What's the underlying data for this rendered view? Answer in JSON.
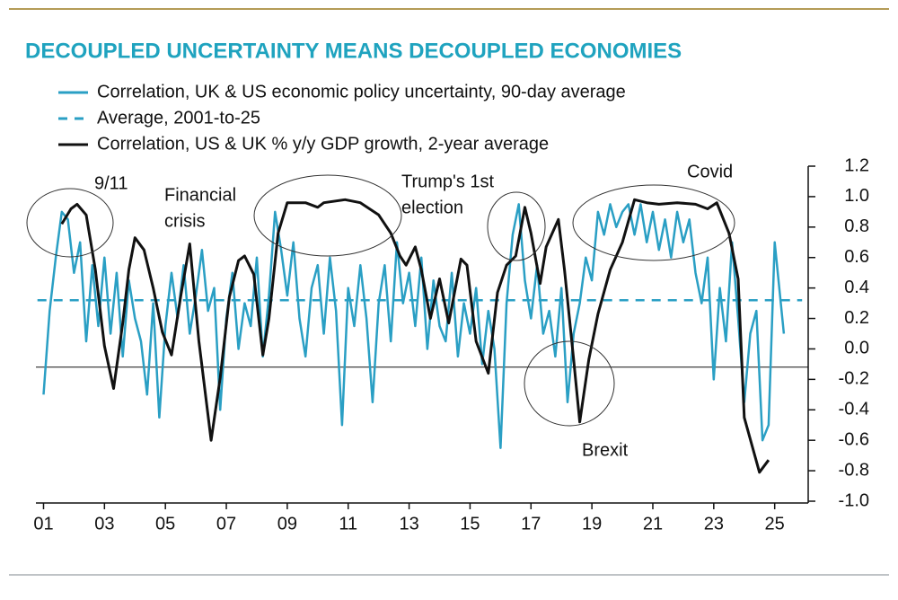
{
  "chart_data": {
    "type": "line",
    "title": "DECOUPLED UNCERTAINTY MEANS DECOUPLED ECONOMIES",
    "xlim": [
      2000.75,
      2026.1
    ],
    "xticks": [
      {
        "value": 2001,
        "label": "01"
      },
      {
        "value": 2003,
        "label": "03"
      },
      {
        "value": 2005,
        "label": "05"
      },
      {
        "value": 2007,
        "label": "07"
      },
      {
        "value": 2009,
        "label": "09"
      },
      {
        "value": 2011,
        "label": "11"
      },
      {
        "value": 2013,
        "label": "13"
      },
      {
        "value": 2015,
        "label": "15"
      },
      {
        "value": 2017,
        "label": "17"
      },
      {
        "value": 2019,
        "label": "19"
      },
      {
        "value": 2021,
        "label": "21"
      },
      {
        "value": 2023,
        "label": "23"
      },
      {
        "value": 2025,
        "label": "25"
      }
    ],
    "ylim": [
      -1.0,
      1.2
    ],
    "yticks": [
      {
        "value": 1.2,
        "label": "1.2"
      },
      {
        "value": 1.0,
        "label": "1.0"
      },
      {
        "value": 0.8,
        "label": "0.8"
      },
      {
        "value": 0.6,
        "label": "0.6"
      },
      {
        "value": 0.4,
        "label": "0.4"
      },
      {
        "value": 0.2,
        "label": "0.2"
      },
      {
        "value": 0.0,
        "label": "0.0"
      },
      {
        "value": -0.2,
        "label": "-0.2"
      },
      {
        "value": -0.4,
        "label": "-0.4"
      },
      {
        "value": -0.6,
        "label": "-0.6"
      },
      {
        "value": -0.8,
        "label": "-0.8"
      },
      {
        "value": -1.0,
        "label": "-1.0"
      }
    ],
    "reference_line": -0.12,
    "series": [
      {
        "name": "Correlation, UK & US economic policy uncertainty, 90-day average",
        "color": "#2a9fc4",
        "dash": false,
        "x": [
          2001.0,
          2001.2,
          2001.4,
          2001.6,
          2001.8,
          2002.0,
          2002.2,
          2002.4,
          2002.6,
          2002.8,
          2003.0,
          2003.2,
          2003.4,
          2003.6,
          2003.8,
          2004.0,
          2004.2,
          2004.4,
          2004.6,
          2004.8,
          2005.0,
          2005.2,
          2005.4,
          2005.6,
          2005.8,
          2006.0,
          2006.2,
          2006.4,
          2006.6,
          2006.8,
          2007.0,
          2007.2,
          2007.4,
          2007.6,
          2007.8,
          2008.0,
          2008.2,
          2008.4,
          2008.6,
          2008.8,
          2009.0,
          2009.2,
          2009.4,
          2009.6,
          2009.8,
          2010.0,
          2010.2,
          2010.4,
          2010.6,
          2010.8,
          2011.0,
          2011.2,
          2011.4,
          2011.6,
          2011.8,
          2012.0,
          2012.2,
          2012.4,
          2012.6,
          2012.8,
          2013.0,
          2013.2,
          2013.4,
          2013.6,
          2013.8,
          2014.0,
          2014.2,
          2014.4,
          2014.6,
          2014.8,
          2015.0,
          2015.2,
          2015.4,
          2015.6,
          2015.8,
          2016.0,
          2016.2,
          2016.4,
          2016.6,
          2016.8,
          2017.0,
          2017.2,
          2017.4,
          2017.6,
          2017.8,
          2018.0,
          2018.2,
          2018.4,
          2018.6,
          2018.8,
          2019.0,
          2019.2,
          2019.4,
          2019.6,
          2019.8,
          2020.0,
          2020.2,
          2020.4,
          2020.6,
          2020.8,
          2021.0,
          2021.2,
          2021.4,
          2021.6,
          2021.8,
          2022.0,
          2022.2,
          2022.4,
          2022.6,
          2022.8,
          2023.0,
          2023.2,
          2023.4,
          2023.6,
          2023.8,
          2024.0,
          2024.2,
          2024.4,
          2024.6,
          2024.8,
          2025.0,
          2025.2,
          2025.3
        ],
        "values": [
          -0.3,
          0.25,
          0.6,
          0.9,
          0.85,
          0.5,
          0.7,
          0.05,
          0.55,
          0.15,
          0.6,
          0.1,
          0.5,
          -0.05,
          0.45,
          0.2,
          0.05,
          -0.3,
          0.3,
          -0.45,
          0.15,
          0.5,
          0.2,
          0.55,
          0.1,
          0.35,
          0.65,
          0.25,
          0.4,
          -0.4,
          0.2,
          0.5,
          0.0,
          0.3,
          0.15,
          0.6,
          -0.05,
          0.35,
          0.9,
          0.65,
          0.35,
          0.7,
          0.2,
          -0.05,
          0.4,
          0.55,
          0.1,
          0.6,
          0.25,
          -0.5,
          0.4,
          0.15,
          0.55,
          0.2,
          -0.35,
          0.3,
          0.55,
          0.05,
          0.7,
          0.3,
          0.5,
          0.15,
          0.6,
          0.0,
          0.45,
          0.15,
          0.05,
          0.5,
          -0.05,
          0.3,
          0.1,
          0.4,
          -0.1,
          0.25,
          0.0,
          -0.65,
          0.3,
          0.75,
          0.95,
          0.45,
          0.2,
          0.55,
          0.1,
          0.25,
          -0.05,
          0.4,
          -0.35,
          0.1,
          0.3,
          0.6,
          0.45,
          0.9,
          0.75,
          0.95,
          0.8,
          0.9,
          0.95,
          0.75,
          0.95,
          0.7,
          0.9,
          0.65,
          0.85,
          0.6,
          0.9,
          0.7,
          0.85,
          0.5,
          0.3,
          0.6,
          -0.2,
          0.4,
          0.05,
          0.7,
          0.2,
          -0.35,
          0.1,
          0.25,
          -0.6,
          -0.5,
          0.7,
          0.3,
          0.1
        ]
      },
      {
        "name": "Average, 2001-to-25",
        "color": "#2a9fc4",
        "dash": true,
        "x": [
          2000.8,
          2025.9
        ],
        "values": [
          0.32,
          0.32
        ]
      },
      {
        "name": "Correlation, US & UK % y/y GDP growth, 2-year average",
        "color": "#111111",
        "dash": false,
        "x": [
          2001.6,
          2001.9,
          2002.1,
          2002.4,
          2002.7,
          2003.0,
          2003.3,
          2003.6,
          2003.8,
          2004.0,
          2004.3,
          2004.6,
          2004.9,
          2005.2,
          2005.5,
          2005.8,
          2006.1,
          2006.5,
          2006.8,
          2007.1,
          2007.4,
          2007.6,
          2007.9,
          2008.2,
          2008.4,
          2008.7,
          2009.0,
          2009.6,
          2010.0,
          2010.2,
          2010.9,
          2011.4,
          2012.0,
          2012.4,
          2012.7,
          2012.9,
          2013.2,
          2013.4,
          2013.7,
          2014.0,
          2014.3,
          2014.7,
          2014.9,
          2015.2,
          2015.6,
          2015.9,
          2016.2,
          2016.5,
          2016.8,
          2017.0,
          2017.3,
          2017.5,
          2017.9,
          2018.1,
          2018.4,
          2018.6,
          2018.9,
          2019.2,
          2019.6,
          2020.0,
          2020.4,
          2020.8,
          2021.2,
          2021.8,
          2022.4,
          2022.8,
          2023.1,
          2023.5,
          2023.8,
          2024.0,
          2024.5,
          2024.8
        ],
        "values": [
          0.82,
          0.92,
          0.95,
          0.88,
          0.52,
          0.02,
          -0.26,
          0.17,
          0.52,
          0.73,
          0.65,
          0.4,
          0.11,
          -0.04,
          0.34,
          0.69,
          0.05,
          -0.6,
          -0.19,
          0.34,
          0.58,
          0.61,
          0.49,
          -0.04,
          0.2,
          0.76,
          0.96,
          0.96,
          0.93,
          0.96,
          0.98,
          0.96,
          0.88,
          0.76,
          0.61,
          0.55,
          0.67,
          0.52,
          0.2,
          0.46,
          0.17,
          0.59,
          0.55,
          0.05,
          -0.16,
          0.37,
          0.55,
          0.61,
          0.93,
          0.76,
          0.43,
          0.67,
          0.85,
          0.52,
          -0.07,
          -0.48,
          -0.07,
          0.23,
          0.52,
          0.7,
          0.98,
          0.96,
          0.95,
          0.96,
          0.95,
          0.92,
          0.96,
          0.76,
          0.46,
          -0.45,
          -0.81,
          -0.73
        ]
      }
    ],
    "annotations": [
      [
        "9/11"
      ],
      [
        "Financial",
        "crisis"
      ],
      [
        "Trump's 1st",
        "election"
      ],
      [
        "Covid"
      ],
      [
        "Brexit"
      ]
    ]
  }
}
